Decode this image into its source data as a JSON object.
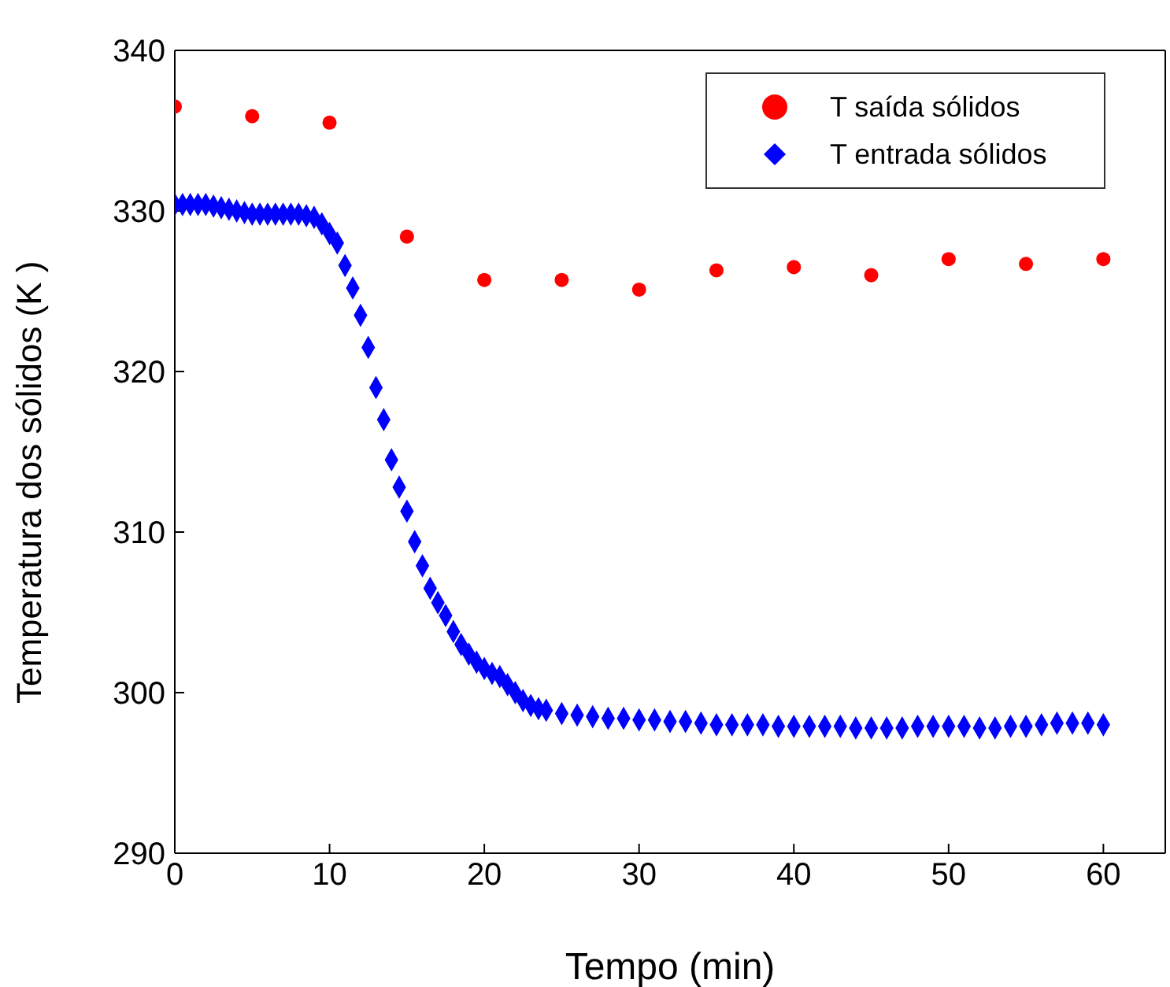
{
  "chart_data": {
    "type": "scatter",
    "xlabel": "Tempo (min)",
    "ylabel": "Temperatura dos sólidos   (K )",
    "xlim": [
      0,
      64
    ],
    "xticks": [
      0,
      10,
      20,
      30,
      40,
      50,
      60
    ],
    "ylim": [
      290,
      340
    ],
    "yticks": [
      290,
      300,
      310,
      320,
      330,
      340
    ],
    "grid": false,
    "legend": "top right",
    "series": [
      {
        "name": "T saída sólidos",
        "color": "#ff0000",
        "marker": "circle",
        "x": [
          0,
          5,
          10,
          15,
          20,
          25,
          30,
          35,
          40,
          45,
          50,
          55,
          60
        ],
        "values": [
          336.5,
          335.9,
          335.5,
          328.4,
          325.7,
          325.7,
          325.1,
          326.3,
          326.5,
          326.0,
          327.0,
          326.7,
          327.0
        ]
      },
      {
        "name": "T entrada sólidos",
        "color": "#0000ff",
        "marker": "diamond",
        "x": [
          0,
          0.5,
          1,
          1.5,
          2,
          2.5,
          3,
          3.5,
          4,
          4.5,
          5,
          5.5,
          6,
          6.5,
          7,
          7.5,
          8,
          8.5,
          9,
          9.5,
          10,
          10.5,
          11,
          11.5,
          12,
          12.5,
          13,
          13.5,
          14,
          14.5,
          15,
          15.5,
          16,
          16.5,
          17,
          17.5,
          18,
          18.5,
          19,
          19.5,
          20,
          20.5,
          21,
          21.5,
          22,
          22.5,
          23,
          23.5,
          24,
          25,
          26,
          27,
          28,
          29,
          30,
          31,
          32,
          33,
          34,
          35,
          36,
          37,
          38,
          39,
          40,
          41,
          42,
          43,
          44,
          45,
          46,
          47,
          48,
          49,
          50,
          51,
          52,
          53,
          54,
          55,
          56,
          57,
          58,
          59,
          60
        ],
        "values": [
          330.4,
          330.4,
          330.4,
          330.4,
          330.4,
          330.3,
          330.2,
          330.1,
          330.0,
          329.9,
          329.8,
          329.8,
          329.8,
          329.8,
          329.8,
          329.8,
          329.8,
          329.7,
          329.6,
          329.2,
          328.6,
          328.0,
          326.6,
          325.2,
          323.5,
          321.5,
          319.0,
          317.0,
          314.5,
          312.8,
          311.3,
          309.4,
          307.9,
          306.5,
          305.6,
          304.8,
          303.8,
          303.0,
          302.4,
          301.9,
          301.5,
          301.2,
          301.0,
          300.5,
          300.0,
          299.5,
          299.2,
          299.0,
          298.9,
          298.7,
          298.6,
          298.5,
          298.4,
          298.4,
          298.3,
          298.3,
          298.2,
          298.2,
          298.1,
          298.0,
          298.0,
          298.0,
          298.0,
          297.9,
          297.9,
          297.9,
          297.9,
          297.9,
          297.8,
          297.8,
          297.8,
          297.8,
          297.9,
          297.9,
          297.9,
          297.9,
          297.8,
          297.8,
          297.9,
          297.9,
          298.0,
          298.1,
          298.1,
          298.1,
          298.0
        ]
      }
    ]
  }
}
